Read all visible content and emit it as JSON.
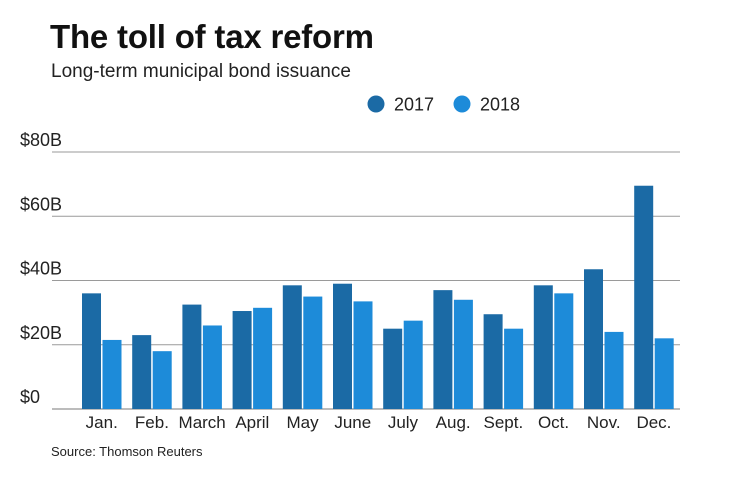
{
  "title": "The toll of tax reform",
  "subtitle": "Long-term municipal bond issuance",
  "source": "Source: Thomson Reuters",
  "colors": {
    "s2017": "#1b6aa5",
    "s2018": "#1d8bd9",
    "grid": "#9a9a9a",
    "axis": "#7a7a7a"
  },
  "chart_data": {
    "type": "bar",
    "categories": [
      "Jan.",
      "Feb.",
      "March",
      "April",
      "May",
      "June",
      "July",
      "Aug.",
      "Sept.",
      "Oct.",
      "Nov.",
      "Dec."
    ],
    "series": [
      {
        "name": "2017",
        "values": [
          36,
          23,
          32.5,
          30.5,
          38.5,
          39,
          25,
          37,
          29.5,
          38.5,
          43.5,
          69.5
        ]
      },
      {
        "name": "2018",
        "values": [
          21.5,
          18,
          26,
          31.5,
          35,
          33.5,
          27.5,
          34,
          25,
          36,
          24,
          22
        ]
      }
    ],
    "y_ticks": [
      "$0",
      "$20B",
      "$40B",
      "$60B",
      "$80B"
    ],
    "ylim": [
      0,
      80
    ],
    "legend": "top-right",
    "grid": true
  }
}
